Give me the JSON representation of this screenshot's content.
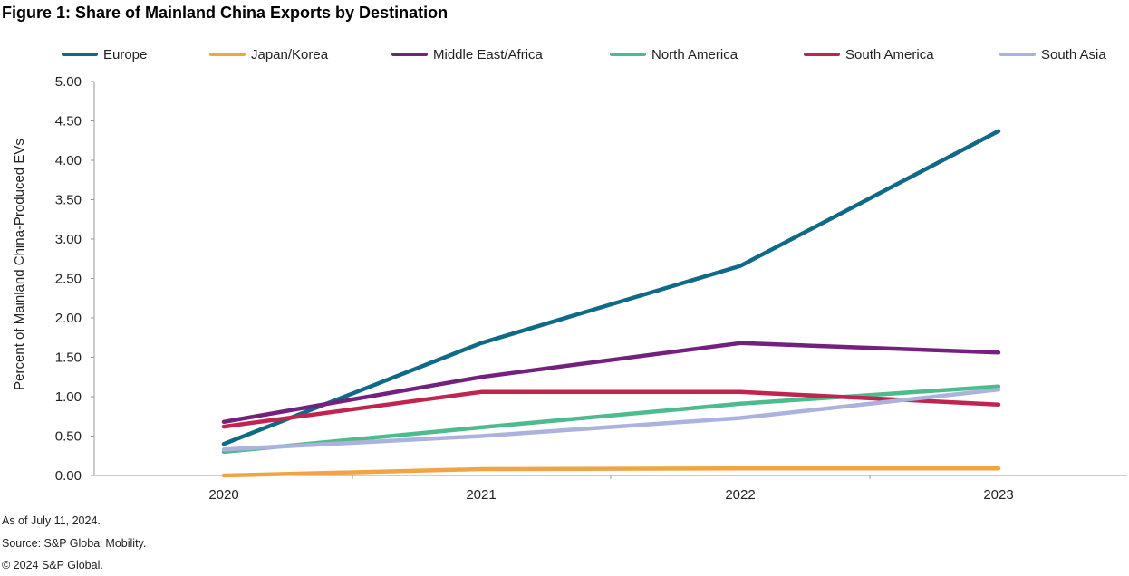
{
  "figure": {
    "title": "Figure 1: Share of Mainland China Exports by Destination",
    "footer": [
      "As of July 11, 2024.",
      "Source: S&P Global Mobility.",
      "© 2024 S&P Global."
    ]
  },
  "chart_data": {
    "type": "line",
    "title": "Figure 1: Share of Mainland China Exports by Destination",
    "xlabel": "",
    "ylabel": "Percent of Mainland China-Produced EVs",
    "categories": [
      "2020",
      "2021",
      "2022",
      "2023"
    ],
    "ylim": [
      0,
      5
    ],
    "yticks": [
      "0.00",
      "0.50",
      "1.00",
      "1.50",
      "2.00",
      "2.50",
      "3.00",
      "3.50",
      "4.00",
      "4.50",
      "5.00"
    ],
    "grid": false,
    "legend_position": "top",
    "series": [
      {
        "name": "Europe",
        "color": "#0f6a87",
        "values": [
          0.4,
          1.68,
          2.66,
          4.37
        ]
      },
      {
        "name": "Japan/Korea",
        "color": "#f2a444",
        "values": [
          0.0,
          0.08,
          0.09,
          0.09
        ]
      },
      {
        "name": "Middle East/Africa",
        "color": "#74207e",
        "values": [
          0.68,
          1.25,
          1.68,
          1.56
        ]
      },
      {
        "name": "North America",
        "color": "#4dbb8e",
        "values": [
          0.3,
          0.61,
          0.91,
          1.13
        ]
      },
      {
        "name": "South America",
        "color": "#c0244f",
        "values": [
          0.62,
          1.06,
          1.06,
          0.9
        ]
      },
      {
        "name": "South Asia",
        "color": "#abb2dd",
        "values": [
          0.33,
          0.5,
          0.73,
          1.09
        ]
      }
    ]
  }
}
